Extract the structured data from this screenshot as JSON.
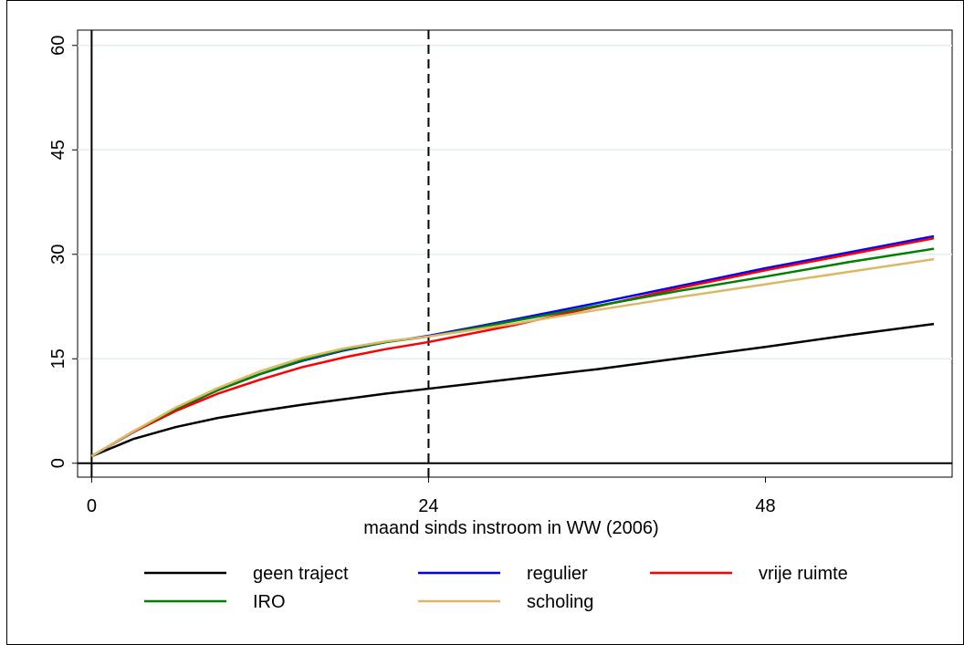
{
  "chart_data": {
    "type": "line",
    "x_label": "maand sinds instroom in WW (2006)",
    "x": [
      0,
      3,
      6,
      9,
      12,
      15,
      18,
      21,
      24,
      30,
      36,
      42,
      48,
      54,
      60
    ],
    "series": [
      {
        "name": "geen traject",
        "color": "#000000",
        "values": [
          1,
          3.5,
          5.2,
          6.5,
          7.5,
          8.4,
          9.2,
          10,
          10.7,
          12.1,
          13.5,
          15.1,
          16.7,
          18.4,
          20
        ]
      },
      {
        "name": "regulier",
        "color": "#0000ff",
        "values": [
          1,
          4.5,
          7.7,
          10.5,
          12.8,
          14.7,
          16.2,
          17.4,
          18.3,
          20.6,
          23,
          25.5,
          28,
          30.3,
          32.6
        ]
      },
      {
        "name": "vrije ruimte",
        "color": "#ff0000",
        "values": [
          1,
          4.5,
          7.5,
          10,
          12,
          13.8,
          15.2,
          16.4,
          17.4,
          19.8,
          22.5,
          25.2,
          27.7,
          30,
          32.3
        ]
      },
      {
        "name": "IRO",
        "color": "#008000",
        "values": [
          1,
          4.6,
          7.8,
          10.5,
          12.8,
          14.8,
          16.3,
          17.4,
          18.2,
          20.4,
          22.6,
          24.8,
          26.8,
          28.9,
          30.8
        ]
      },
      {
        "name": "scholing",
        "color": "#dbb866",
        "values": [
          1,
          4.6,
          8,
          10.8,
          13.2,
          15.1,
          16.5,
          17.5,
          18.2,
          20,
          22,
          23.9,
          25.7,
          27.5,
          29.3
        ]
      }
    ],
    "xlim": [
      -1,
      61.3
    ],
    "ylim": [
      -2,
      62.2
    ],
    "xticks": [
      0,
      24,
      48
    ],
    "yticks": [
      0,
      15,
      30,
      45,
      60
    ],
    "grid": true,
    "xlines": [
      {
        "value": 0,
        "style": "solid"
      },
      {
        "value": 24,
        "style": "dashed"
      }
    ],
    "ylines": [
      {
        "value": 0,
        "style": "solid"
      }
    ],
    "legend": {
      "position": "bottom",
      "columns": 3
    }
  }
}
